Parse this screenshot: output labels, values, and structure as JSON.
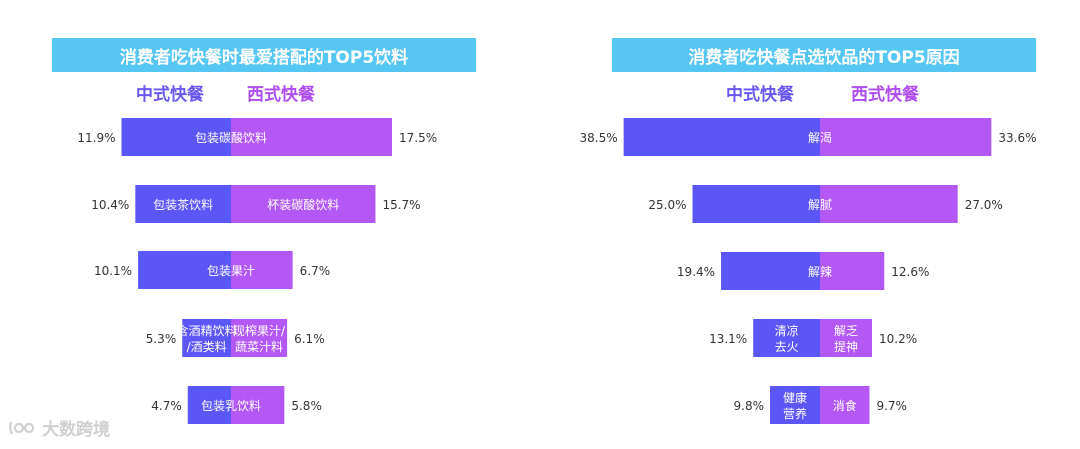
{
  "colors": {
    "chinese": "#5b56f6",
    "western": "#b458f5",
    "title_bg": "#56c6f5",
    "legend_chinese": "#6a57f0",
    "legend_western": "#b04df0"
  },
  "watermark": "大数跨境",
  "chart_data": [
    {
      "type": "bar",
      "title": "消费者吃快餐时最爱搭配的TOP5饮料",
      "legend": [
        "中式快餐",
        "西式快餐"
      ],
      "series": [
        {
          "name": "中式快餐",
          "values": [
            11.9,
            10.4,
            10.1,
            5.3,
            4.7
          ],
          "value_labels": [
            "11.9%",
            "10.4%",
            "10.1%",
            "5.3%",
            "4.7%"
          ]
        },
        {
          "name": "西式快餐",
          "values": [
            17.5,
            15.7,
            6.7,
            6.1,
            5.8
          ],
          "value_labels": [
            "17.5%",
            "15.7%",
            "6.7%",
            "6.1%",
            "5.8%"
          ]
        }
      ],
      "rows": [
        {
          "left_label": [
            "包装碳酸饮料"
          ],
          "right_label": []
        },
        {
          "left_label": [
            "包装茶饮料"
          ],
          "right_label": [
            "杯装碳酸饮料"
          ]
        },
        {
          "left_label": [
            "包装果汁"
          ],
          "right_label": []
        },
        {
          "left_label": [
            "含酒精饮料",
            "/酒类料"
          ],
          "right_label": [
            "现榨果汁/",
            "蔬菜汁料"
          ]
        },
        {
          "left_label": [
            "包装乳饮料"
          ],
          "right_label": []
        }
      ]
    },
    {
      "type": "bar",
      "title": "消费者吃快餐点选饮品的TOP5原因",
      "legend": [
        "中式快餐",
        "西式快餐"
      ],
      "series": [
        {
          "name": "中式快餐",
          "values": [
            38.5,
            25.0,
            19.4,
            13.1,
            9.8
          ],
          "value_labels": [
            "38.5%",
            "25.0%",
            "19.4%",
            "13.1%",
            "9.8%"
          ]
        },
        {
          "name": "西式快餐",
          "values": [
            33.6,
            27.0,
            12.6,
            10.2,
            9.7
          ],
          "value_labels": [
            "33.6%",
            "27.0%",
            "12.6%",
            "10.2%",
            "9.7%"
          ]
        }
      ],
      "rows": [
        {
          "left_label": [],
          "right_label": [
            "解渴"
          ]
        },
        {
          "left_label": [],
          "right_label": [
            "解腻"
          ]
        },
        {
          "left_label": [],
          "right_label": [
            "解辣"
          ]
        },
        {
          "left_label": [
            "清凉",
            "去火"
          ],
          "right_label": [
            "解乏",
            "提神"
          ]
        },
        {
          "left_label": [
            "健康",
            "营养"
          ],
          "right_label": [
            "消食"
          ]
        }
      ]
    }
  ]
}
